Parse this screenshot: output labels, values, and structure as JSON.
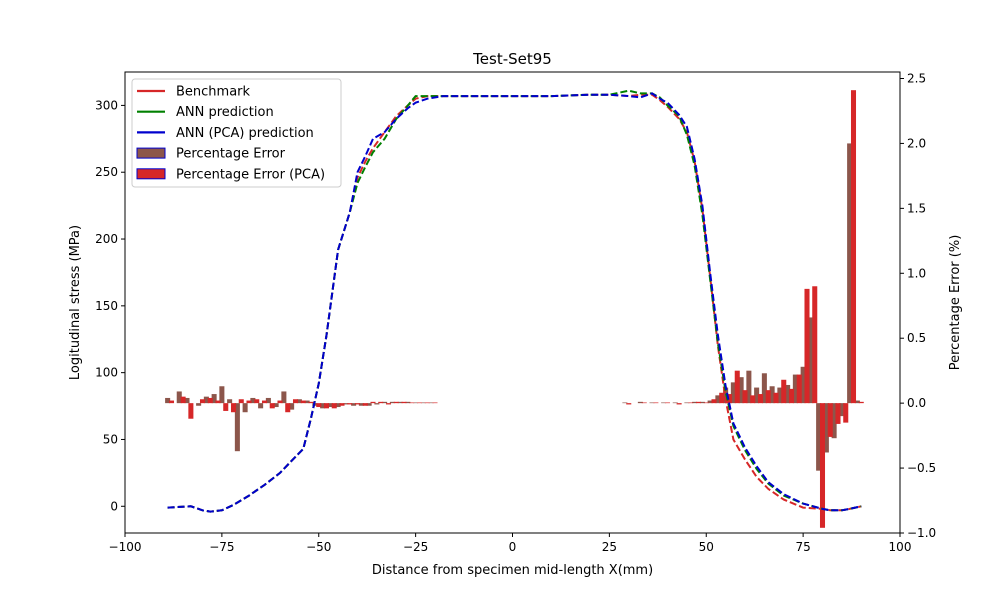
{
  "chart_data": {
    "type": "line",
    "title": "Test-Set95",
    "xlabel": "Distance from specimen mid-length X(mm)",
    "ylabel": "Logitudinal stress (MPa)",
    "y2label": "Percentage Error (%)",
    "xlim": [
      -100,
      100
    ],
    "ylim": [
      -20,
      325
    ],
    "y2lim": [
      -1.0,
      2.55
    ],
    "x_ticks": [
      -100,
      -75,
      -50,
      -25,
      0,
      25,
      50,
      75,
      100
    ],
    "y_ticks": [
      0,
      50,
      100,
      150,
      200,
      250,
      300
    ],
    "y2_ticks": [
      -1.0,
      -0.5,
      0.0,
      0.5,
      1.0,
      1.5,
      2.0,
      2.5
    ],
    "x_tick_labels": [
      "−100",
      "−75",
      "−50",
      "−25",
      "0",
      "25",
      "50",
      "75",
      "100"
    ],
    "y_tick_labels": [
      "0",
      "50",
      "100",
      "150",
      "200",
      "250",
      "300"
    ],
    "y2_tick_labels": [
      "−1.0",
      "−0.5",
      "0.0",
      "0.5",
      "1.0",
      "1.5",
      "2.0",
      "2.5"
    ],
    "legend_position": "top-left",
    "grid": false,
    "legend": [
      {
        "label": "Benchmark",
        "kind": "line",
        "color": "#d62728"
      },
      {
        "label": "ANN prediction",
        "kind": "line",
        "color": "#008000"
      },
      {
        "label": "ANN (PCA) prediction",
        "kind": "line",
        "color": "#0000cd"
      },
      {
        "label": "Percentage Error",
        "kind": "patch",
        "color": "#8c564b",
        "edge": "#0000cd"
      },
      {
        "label": "Percentage Error (PCA)",
        "kind": "patch",
        "color": "#d62728",
        "edge": "#0000cd"
      }
    ],
    "series": [
      {
        "name": "Benchmark",
        "color": "#d62728",
        "axis": "left",
        "style": "dashed",
        "x": [
          -89,
          -83,
          -80,
          -78,
          -75,
          -72,
          -68,
          -64,
          -60,
          -57,
          -54,
          -52,
          -50,
          -48,
          -45,
          -42,
          -40,
          -38,
          -36,
          -33,
          -30,
          -27,
          -25,
          -22,
          -18,
          -10,
          0,
          10,
          20,
          25,
          30,
          33,
          36,
          38,
          40,
          43,
          45,
          47,
          49,
          51,
          53,
          55,
          57,
          60,
          63,
          66,
          70,
          75,
          80,
          82,
          85,
          87,
          90
        ],
        "y": [
          -1,
          0,
          -3,
          -4,
          -3,
          1,
          8,
          16,
          25,
          34,
          43,
          66,
          92,
          128,
          192,
          220,
          246,
          258,
          268,
          280,
          292,
          300,
          305,
          307,
          307,
          307,
          307,
          307,
          308,
          308,
          307,
          308,
          308,
          304,
          299,
          290,
          280,
          258,
          222,
          172,
          120,
          80,
          50,
          35,
          22,
          13,
          5,
          -1,
          -2,
          -3,
          -3,
          -2,
          0
        ]
      },
      {
        "name": "ANN prediction",
        "color": "#008000",
        "axis": "left",
        "style": "dashed",
        "x": [
          -89,
          -83,
          -80,
          -78,
          -75,
          -72,
          -68,
          -64,
          -60,
          -57,
          -54,
          -52,
          -50,
          -48,
          -45,
          -42,
          -40,
          -38,
          -36,
          -33,
          -30,
          -27,
          -25,
          -22,
          -18,
          -10,
          0,
          10,
          20,
          25,
          30,
          33,
          36,
          38,
          40,
          43,
          45,
          47,
          49,
          51,
          53,
          55,
          57,
          60,
          63,
          66,
          70,
          75,
          80,
          82,
          85,
          87,
          90
        ],
        "y": [
          -1,
          0,
          -3,
          -4,
          -3,
          1,
          8,
          16,
          25,
          34,
          43,
          66,
          92,
          128,
          192,
          220,
          242,
          254,
          265,
          275,
          290,
          300,
          307,
          307,
          307,
          307,
          307,
          307,
          308,
          308,
          311,
          309,
          309,
          306,
          300,
          292,
          278,
          255,
          218,
          170,
          122,
          86,
          60,
          42,
          28,
          17,
          8,
          2,
          -2,
          -3,
          -3,
          -2,
          0
        ]
      },
      {
        "name": "ANN (PCA) prediction",
        "color": "#0000cd",
        "axis": "left",
        "style": "dashed",
        "x": [
          -89,
          -83,
          -80,
          -78,
          -75,
          -72,
          -68,
          -64,
          -60,
          -57,
          -54,
          -52,
          -50,
          -48,
          -45,
          -42,
          -40,
          -38,
          -36,
          -33,
          -30,
          -27,
          -25,
          -22,
          -18,
          -10,
          0,
          10,
          20,
          25,
          30,
          33,
          36,
          38,
          40,
          43,
          45,
          47,
          49,
          51,
          53,
          55,
          57,
          60,
          63,
          66,
          70,
          75,
          80,
          82,
          85,
          87,
          90
        ],
        "y": [
          -1,
          0,
          -3,
          -4,
          -3,
          1,
          8,
          16,
          25,
          34,
          43,
          66,
          92,
          128,
          192,
          220,
          250,
          262,
          275,
          280,
          290,
          298,
          302,
          305,
          307,
          307,
          307,
          307,
          308,
          308,
          307,
          306,
          309,
          305,
          302,
          293,
          284,
          260,
          225,
          175,
          128,
          90,
          62,
          44,
          30,
          18,
          9,
          2,
          -2,
          -3,
          -3,
          -2,
          0
        ]
      },
      {
        "name": "Percentage Error",
        "color": "#8c564b",
        "axis": "right",
        "style": "bar",
        "x": [
          -89,
          -86,
          -84,
          -81,
          -79,
          -77,
          -75,
          -73,
          -71,
          -69,
          -67,
          -65,
          -63,
          -61,
          -59,
          -57,
          -55,
          -53,
          -51,
          -49,
          -47,
          -45,
          -43,
          -41,
          -39,
          -37,
          -35,
          -33,
          -31,
          -29,
          -27,
          -25,
          -23,
          -21,
          29,
          33,
          36,
          39,
          42,
          45,
          47,
          49,
          51,
          53,
          55,
          57,
          59,
          61,
          63,
          65,
          67,
          69,
          71,
          73,
          75,
          77,
          79,
          81,
          83,
          85,
          87,
          89
        ],
        "y": [
          0.04,
          0.09,
          0.04,
          -0.02,
          0.05,
          0.07,
          0.13,
          0.03,
          -0.37,
          -0.07,
          0.04,
          -0.04,
          0.04,
          -0.03,
          0.09,
          -0.05,
          0.03,
          0.02,
          -0.02,
          -0.04,
          -0.03,
          -0.03,
          -0.01,
          -0.02,
          -0.02,
          -0.02,
          -0.01,
          0.01,
          0.01,
          0.01,
          0.01,
          0.005,
          0.005,
          0.005,
          0.005,
          0.01,
          0.005,
          0.005,
          0.005,
          0.005,
          0.01,
          0.01,
          0.02,
          0.06,
          0.12,
          0.16,
          0.2,
          0.25,
          0.12,
          0.23,
          0.13,
          0.12,
          0.14,
          0.22,
          0.28,
          0.66,
          -0.52,
          -0.38,
          -0.27,
          -0.1,
          2.0,
          0.02
        ]
      },
      {
        "name": "Percentage Error (PCA)",
        "color": "#d62728",
        "axis": "right",
        "style": "bar",
        "x": [
          -88,
          -85,
          -83,
          -80,
          -78,
          -76,
          -74,
          -72,
          -70,
          -68,
          -66,
          -64,
          -62,
          -60,
          -58,
          -56,
          -54,
          -52,
          -50,
          -48,
          -46,
          -44,
          -42,
          -40,
          -38,
          -36,
          -34,
          -32,
          -30,
          -28,
          -26,
          -24,
          -22,
          -20,
          30,
          34,
          37,
          40,
          43,
          46,
          48,
          50,
          52,
          54,
          56,
          58,
          60,
          62,
          64,
          66,
          68,
          70,
          72,
          74,
          76,
          78,
          80,
          82,
          84,
          86,
          88,
          90
        ],
        "y": [
          0.02,
          0.05,
          -0.12,
          0.03,
          0.04,
          0.02,
          -0.06,
          -0.07,
          0.03,
          0.02,
          0.03,
          0.02,
          -0.04,
          0.02,
          -0.07,
          0.03,
          0.02,
          0.01,
          -0.03,
          -0.04,
          -0.04,
          -0.02,
          -0.01,
          -0.01,
          -0.02,
          0.01,
          0.01,
          -0.01,
          0.01,
          0.01,
          0.005,
          0.005,
          0.005,
          0.005,
          -0.01,
          0.005,
          0.005,
          0.005,
          -0.01,
          0.005,
          0.01,
          0.005,
          0.03,
          0.08,
          0.07,
          0.25,
          0.1,
          0.06,
          0.07,
          0.1,
          0.08,
          0.18,
          0.11,
          0.22,
          0.88,
          0.9,
          -0.96,
          -0.26,
          -0.16,
          -0.15,
          2.41,
          0.01
        ]
      }
    ]
  }
}
